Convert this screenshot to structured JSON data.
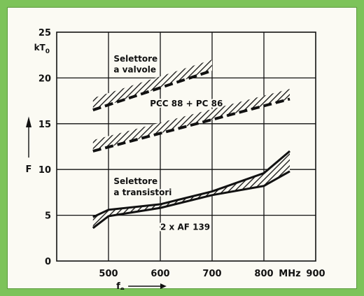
{
  "chart_data": {
    "type": "line",
    "title": "",
    "xlabel": "f",
    "xlabel_subscript": "e",
    "ylabel": "F",
    "y_unit": "kT",
    "y_unit_subscript": "0",
    "x_unit": "MHz",
    "xlim": [
      400,
      900
    ],
    "ylim": [
      0,
      25
    ],
    "x_ticks": [
      500,
      600,
      700,
      800,
      900
    ],
    "y_ticks": [
      0,
      5,
      10,
      15,
      20,
      25
    ],
    "x_tick_labels": [
      "500",
      "600",
      "700",
      "800",
      "900"
    ],
    "y_tick_labels": [
      "0",
      "5",
      "10",
      "15",
      "20",
      "25"
    ],
    "grid": true,
    "legend": "none",
    "series": [
      {
        "label_lines": [
          "Selettore",
          "a valvole"
        ],
        "style": "hatched band, dashed lower edge",
        "x": [
          470,
          700
        ],
        "upper": [
          17.8,
          22.0
        ],
        "lower": [
          16.5,
          20.8
        ]
      },
      {
        "label_lines": [
          "PCC 88 + PC 86"
        ],
        "style": "hatched band, dashed lower edge",
        "x": [
          470,
          850
        ],
        "upper": [
          13.2,
          18.8
        ],
        "lower": [
          12.0,
          17.7
        ]
      },
      {
        "label_lines": [
          "Selettore",
          "a transistori",
          "2 x AF 139"
        ],
        "style": "hatched band, solid crossing edges",
        "x": [
          470,
          500,
          600,
          700,
          800,
          850
        ],
        "upper": [
          4.8,
          5.6,
          6.2,
          7.6,
          9.6,
          12.0
        ],
        "lower": [
          3.6,
          4.9,
          5.8,
          7.2,
          8.2,
          9.8
        ]
      }
    ]
  }
}
